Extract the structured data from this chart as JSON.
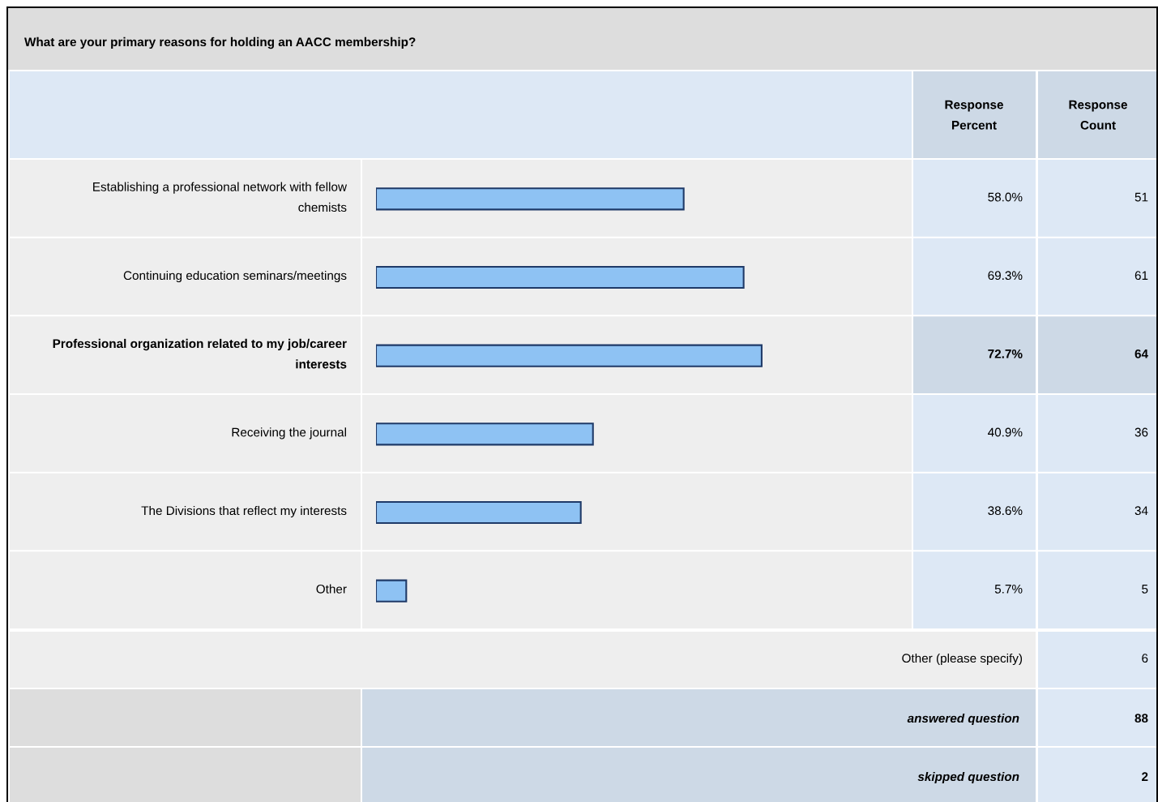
{
  "chart_data": {
    "type": "bar",
    "orientation": "horizontal",
    "title": "What are your primary reasons for holding an AACC membership?",
    "categories": [
      "Establishing a professional network with fellow chemists",
      "Continuing education seminars/meetings",
      "Professional organization related to my job/career interests",
      "Receiving the journal",
      "The Divisions that reflect my interests",
      "Other"
    ],
    "values": [
      58.0,
      69.3,
      72.7,
      40.9,
      38.6,
      5.7
    ],
    "value_labels": [
      "58.0%",
      "69.3%",
      "72.7%",
      "40.9%",
      "38.6%",
      "5.7%"
    ],
    "color": "#8ec2f3",
    "tick_labels": false,
    "annotations": [
      "Response Percent",
      "Response Count",
      "51",
      "61",
      "64",
      "36",
      "34",
      "5",
      "Other (please specify)",
      "6",
      "answered question",
      "88",
      "skipped question",
      "2"
    ]
  }
}
